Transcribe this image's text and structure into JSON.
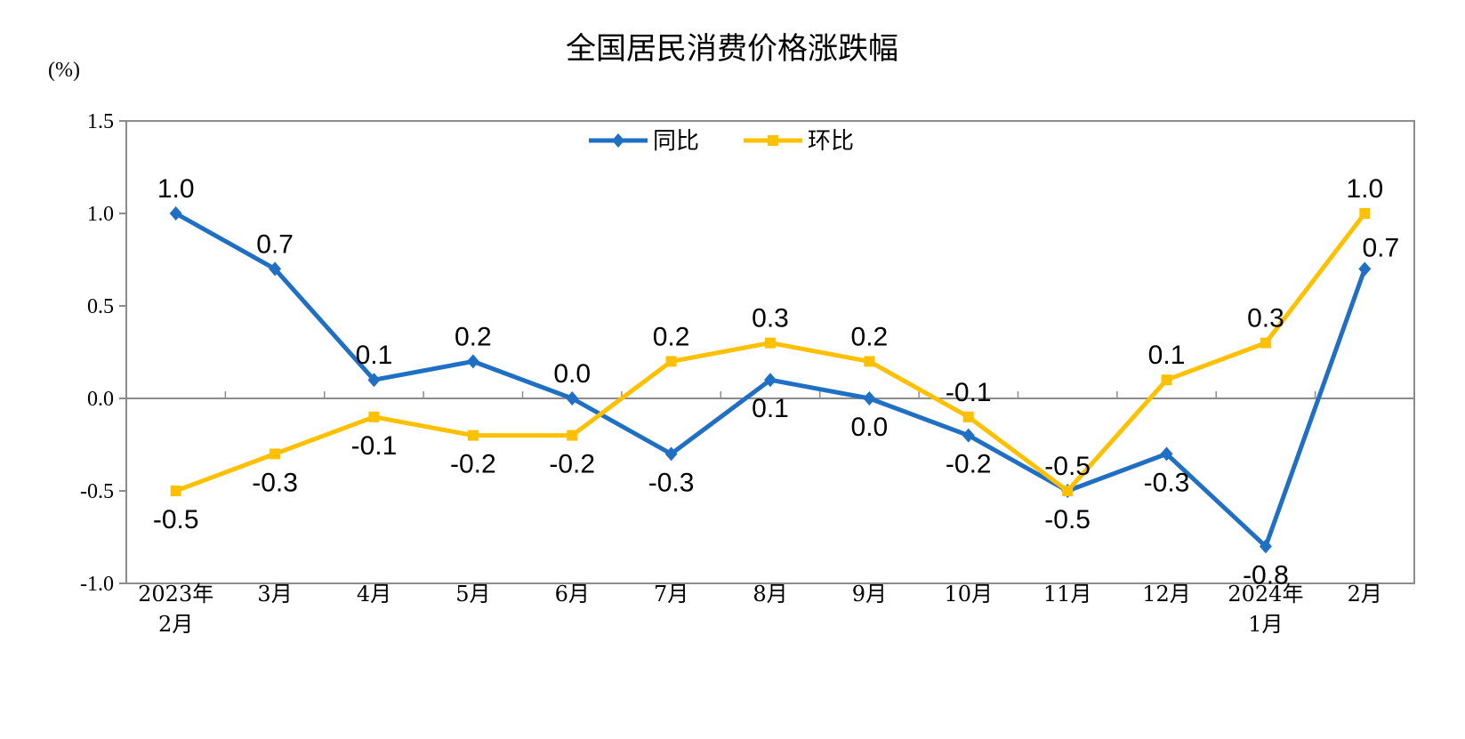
{
  "chart_data": {
    "type": "line",
    "title": "全国居民消费价格涨跌幅",
    "unit_label": "(%)",
    "categories": [
      [
        "2023年",
        "2月"
      ],
      [
        "3月"
      ],
      [
        "4月"
      ],
      [
        "5月"
      ],
      [
        "6月"
      ],
      [
        "7月"
      ],
      [
        "8月"
      ],
      [
        "9月"
      ],
      [
        "10月"
      ],
      [
        "11月"
      ],
      [
        "12月"
      ],
      [
        "2024年",
        "1月"
      ],
      [
        "2月"
      ]
    ],
    "series": [
      {
        "name": "同比",
        "color": "#1F6FC5",
        "marker": "diamond",
        "values": [
          1.0,
          0.7,
          0.1,
          0.2,
          0.0,
          -0.3,
          0.1,
          0.0,
          -0.2,
          -0.5,
          -0.3,
          -0.8,
          0.7
        ],
        "labels": [
          "1.0",
          "0.7",
          "0.1",
          "0.2",
          "0.0",
          "-0.3",
          "0.1",
          "0.0",
          "-0.2",
          "-0.5",
          "-0.3",
          "-0.8",
          "0.7"
        ]
      },
      {
        "name": "环比",
        "color": "#FFC000",
        "marker": "square",
        "values": [
          -0.5,
          -0.3,
          -0.1,
          -0.2,
          -0.2,
          0.2,
          0.3,
          0.2,
          -0.1,
          -0.5,
          0.1,
          0.3,
          1.0
        ],
        "labels": [
          "-0.5",
          "-0.3",
          "-0.1",
          "-0.2",
          "-0.2",
          "0.2",
          "0.3",
          "0.2",
          "-0.1",
          "-0.5",
          "0.1",
          "0.3",
          "1.0"
        ]
      }
    ],
    "ylim": [
      -1.0,
      1.5
    ],
    "yticks": [
      "1.5",
      "1.0",
      "0.5",
      "0.0",
      "-0.5",
      "-1.0"
    ],
    "ytick_values": [
      1.5,
      1.0,
      0.5,
      0.0,
      -0.5,
      -1.0
    ],
    "legend_position": "top-center",
    "grid": false,
    "zero_line": true
  }
}
